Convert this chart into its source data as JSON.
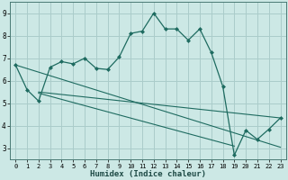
{
  "xlabel": "Humidex (Indice chaleur)",
  "xlim": [
    -0.5,
    23.5
  ],
  "ylim": [
    2.5,
    9.5
  ],
  "xticks": [
    0,
    1,
    2,
    3,
    4,
    5,
    6,
    7,
    8,
    9,
    10,
    11,
    12,
    13,
    14,
    15,
    16,
    17,
    18,
    19,
    20,
    21,
    22,
    23
  ],
  "yticks": [
    3,
    4,
    5,
    6,
    7,
    8,
    9
  ],
  "bg_color": "#cce8e5",
  "grid_color": "#aaccca",
  "line_color": "#1e6b60",
  "main_x": [
    0,
    1,
    2,
    3,
    4,
    5,
    6,
    7,
    8,
    9,
    10,
    11,
    12,
    13,
    14,
    15,
    16,
    17,
    18,
    19,
    20,
    21,
    22,
    23
  ],
  "main_y": [
    6.7,
    5.6,
    5.1,
    6.6,
    6.85,
    6.75,
    7.0,
    6.55,
    6.5,
    7.05,
    8.1,
    8.2,
    9.0,
    8.3,
    8.3,
    7.8,
    8.3,
    7.25,
    5.75,
    2.7,
    3.8,
    3.4,
    3.85,
    4.35
  ],
  "line1_x": [
    0,
    23
  ],
  "line1_y": [
    6.7,
    3.05
  ],
  "line2_x": [
    2,
    23
  ],
  "line2_y": [
    5.5,
    4.35
  ],
  "line3_x": [
    2,
    19
  ],
  "line3_y": [
    5.45,
    3.1
  ]
}
